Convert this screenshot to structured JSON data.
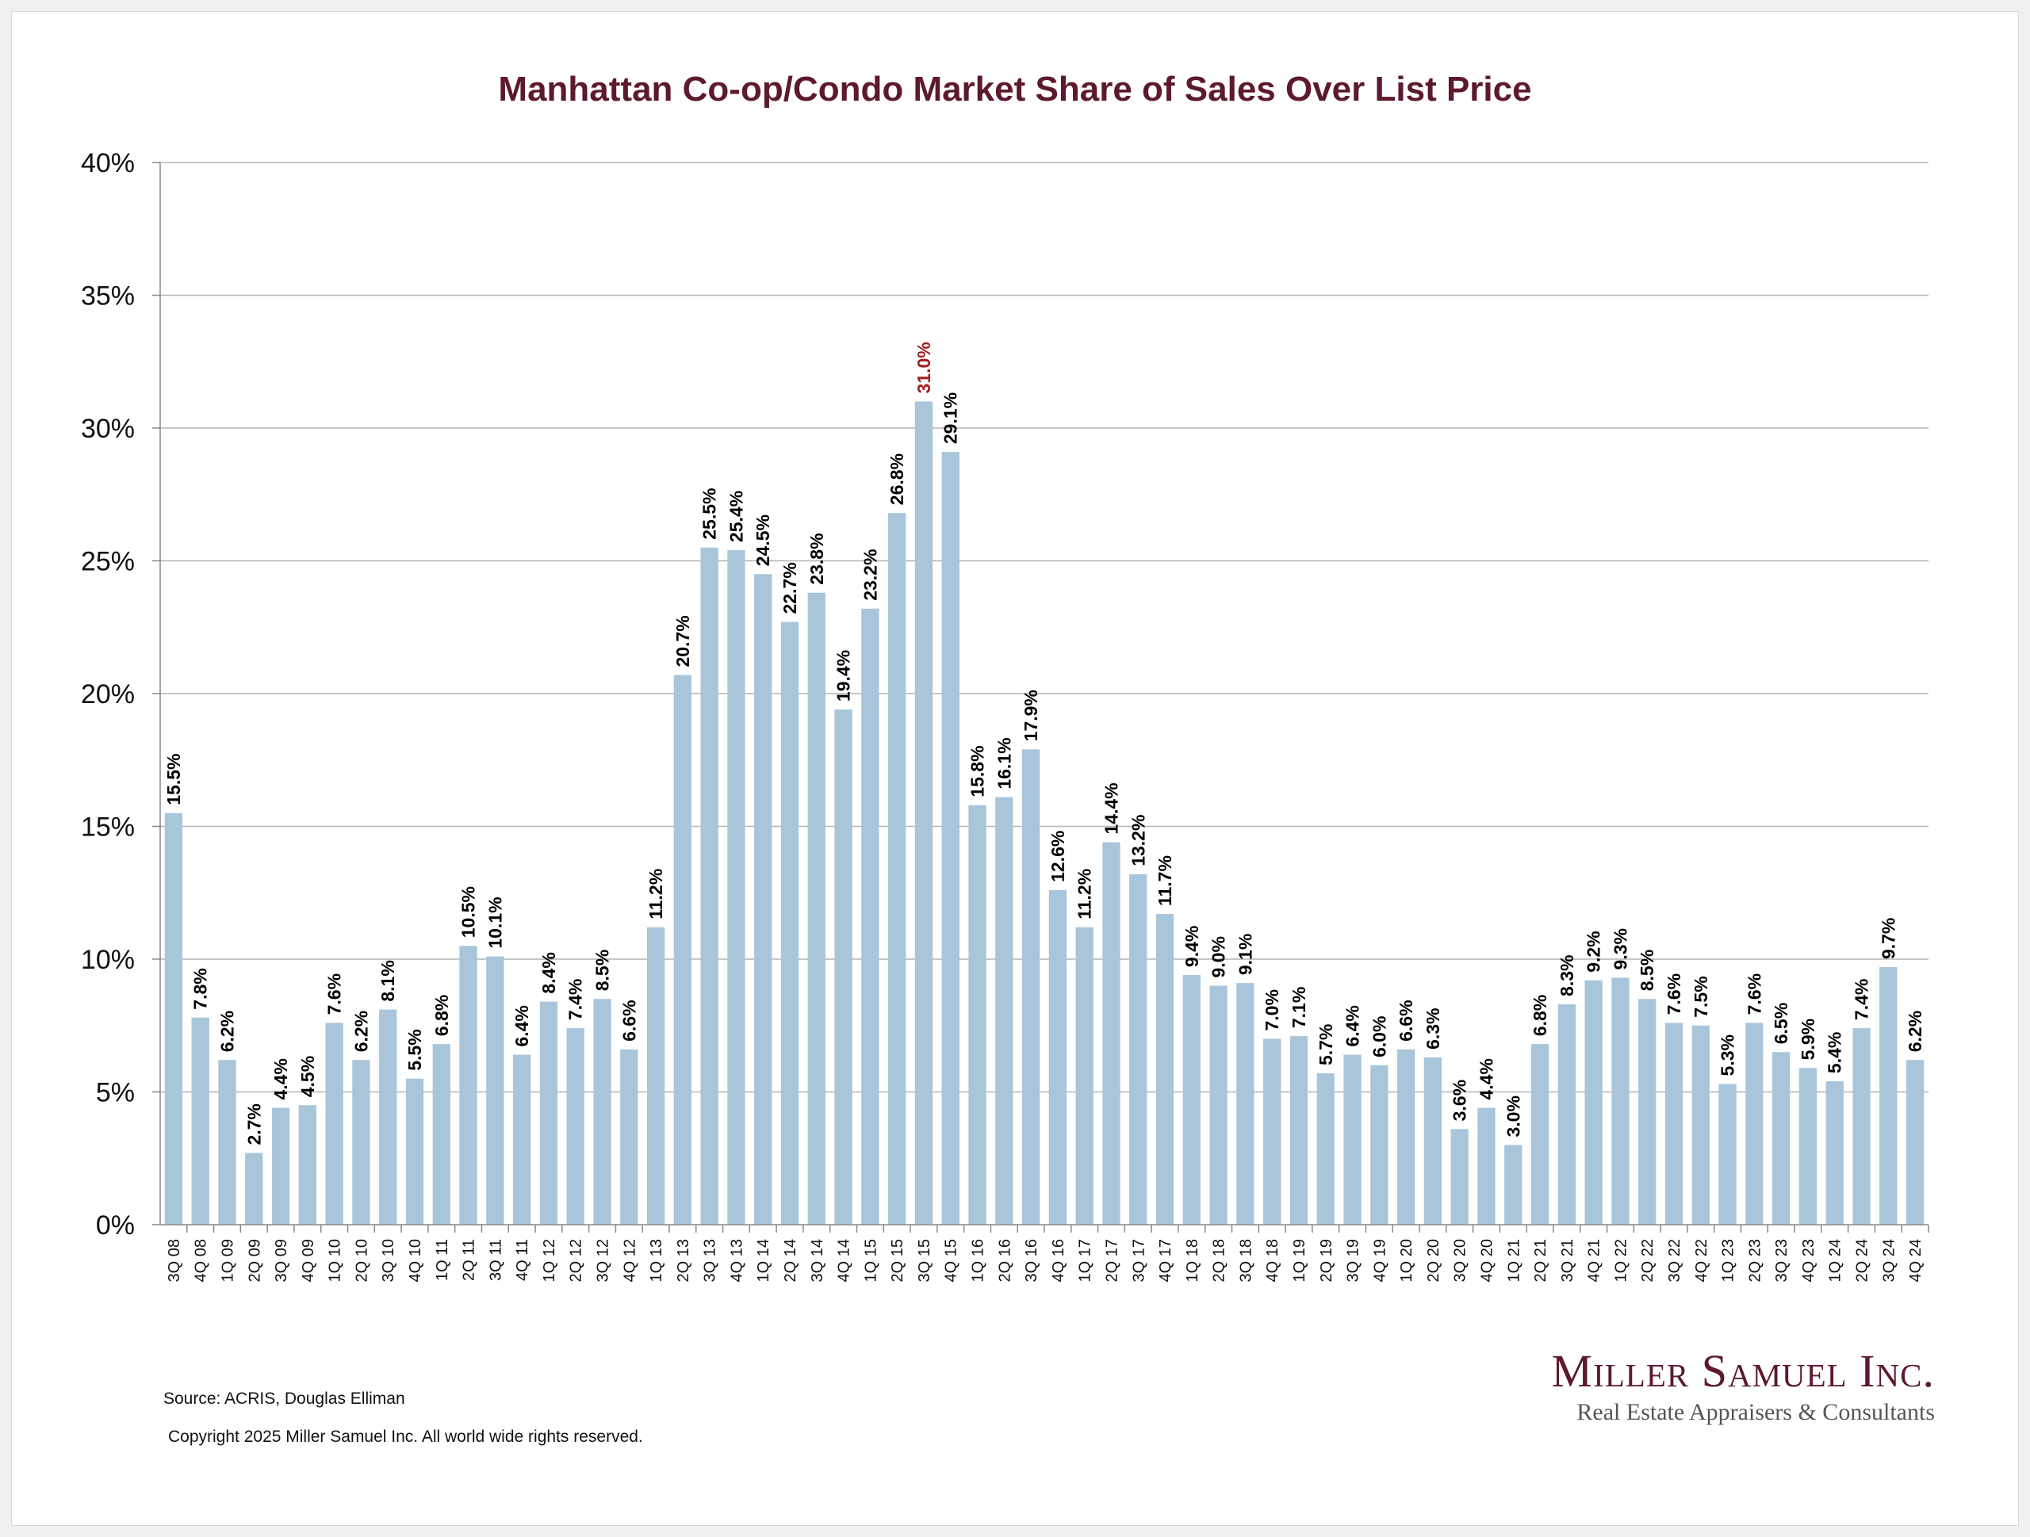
{
  "chart_data": {
    "type": "bar",
    "title": "Manhattan Co-op/Condo Market Share of Sales Over List Price",
    "xlabel": "",
    "ylabel": "",
    "ylim": [
      0,
      40
    ],
    "yticks": [
      "0%",
      "5%",
      "10%",
      "15%",
      "20%",
      "25%",
      "30%",
      "35%",
      "40%"
    ],
    "grid": true,
    "legend": "none",
    "bar_color": "#a9c5da",
    "label_color": "#000000",
    "highlight_color": "#a31b1f",
    "highlight_index": 28,
    "categories": [
      "3Q 08",
      "4Q 08",
      "1Q 09",
      "2Q 09",
      "3Q 09",
      "4Q 09",
      "1Q 10",
      "2Q 10",
      "3Q 10",
      "4Q 10",
      "1Q 11",
      "2Q 11",
      "3Q 11",
      "4Q 11",
      "1Q 12",
      "2Q 12",
      "3Q 12",
      "4Q 12",
      "1Q 13",
      "2Q 13",
      "3Q 13",
      "4Q 13",
      "1Q 14",
      "2Q 14",
      "3Q 14",
      "4Q 14",
      "1Q 15",
      "2Q 15",
      "3Q 15",
      "4Q 15",
      "1Q 16",
      "2Q 16",
      "3Q 16",
      "4Q 16",
      "1Q 17",
      "2Q 17",
      "3Q 17",
      "4Q 17",
      "1Q 18",
      "2Q 18",
      "3Q 18",
      "4Q 18",
      "1Q 19",
      "2Q 19",
      "3Q 19",
      "4Q 19",
      "1Q 20",
      "2Q 20",
      "3Q 20",
      "4Q 20",
      "1Q 21",
      "2Q 21",
      "3Q 21",
      "4Q 21",
      "1Q 22",
      "2Q 22",
      "3Q 22",
      "4Q 22",
      "1Q 23",
      "2Q 23",
      "3Q 23",
      "4Q 23",
      "1Q 24",
      "2Q 24",
      "3Q 24",
      "4Q 24"
    ],
    "values": [
      15.5,
      7.8,
      6.2,
      2.7,
      4.4,
      4.5,
      7.6,
      6.2,
      8.1,
      5.5,
      6.8,
      10.5,
      10.1,
      6.4,
      8.4,
      7.4,
      8.5,
      6.6,
      11.2,
      20.7,
      25.5,
      25.4,
      24.5,
      22.7,
      23.8,
      19.4,
      23.2,
      26.8,
      31.0,
      29.1,
      15.8,
      16.1,
      17.9,
      12.6,
      11.2,
      14.4,
      13.2,
      11.7,
      9.4,
      9.0,
      9.1,
      7.0,
      7.1,
      5.7,
      6.4,
      6.0,
      6.6,
      6.3,
      3.6,
      4.4,
      3.0,
      6.8,
      8.3,
      9.2,
      9.3,
      8.5,
      7.6,
      7.5,
      5.3,
      7.6,
      6.5,
      5.9,
      5.4,
      7.4,
      9.7,
      6.2
    ],
    "data_labels": [
      "15.5%",
      "7.8%",
      "6.2%",
      "2.7%",
      "4.4%",
      "4.5%",
      "7.6%",
      "6.2%",
      "8.1%",
      "5.5%",
      "6.8%",
      "10.5%",
      "10.1%",
      "6.4%",
      "8.4%",
      "7.4%",
      "8.5%",
      "6.6%",
      "11.2%",
      "20.7%",
      "25.5%",
      "25.4%",
      "24.5%",
      "22.7%",
      "23.8%",
      "19.4%",
      "23.2%",
      "26.8%",
      "31.0%",
      "29.1%",
      "15.8%",
      "16.1%",
      "17.9%",
      "12.6%",
      "11.2%",
      "14.4%",
      "13.2%",
      "11.7%",
      "9.4%",
      "9.0%",
      "9.1%",
      "7.0%",
      "7.1%",
      "5.7%",
      "6.4%",
      "6.0%",
      "6.6%",
      "6.3%",
      "3.6%",
      "4.4%",
      "3.0%",
      "6.8%",
      "8.3%",
      "9.2%",
      "9.3%",
      "8.5%",
      "7.6%",
      "7.5%",
      "5.3%",
      "7.6%",
      "6.5%",
      "5.9%",
      "5.4%",
      "7.4%",
      "9.7%",
      "6.2%"
    ]
  },
  "footer": {
    "source": "Source: ACRIS, Douglas Elliman",
    "copyright": "Copyright 2025 Miller Samuel Inc.  All world wide rights reserved."
  },
  "logo": {
    "name": "Miller Samuel Inc.",
    "tagline": "Real Estate Appraisers & Consultants"
  }
}
